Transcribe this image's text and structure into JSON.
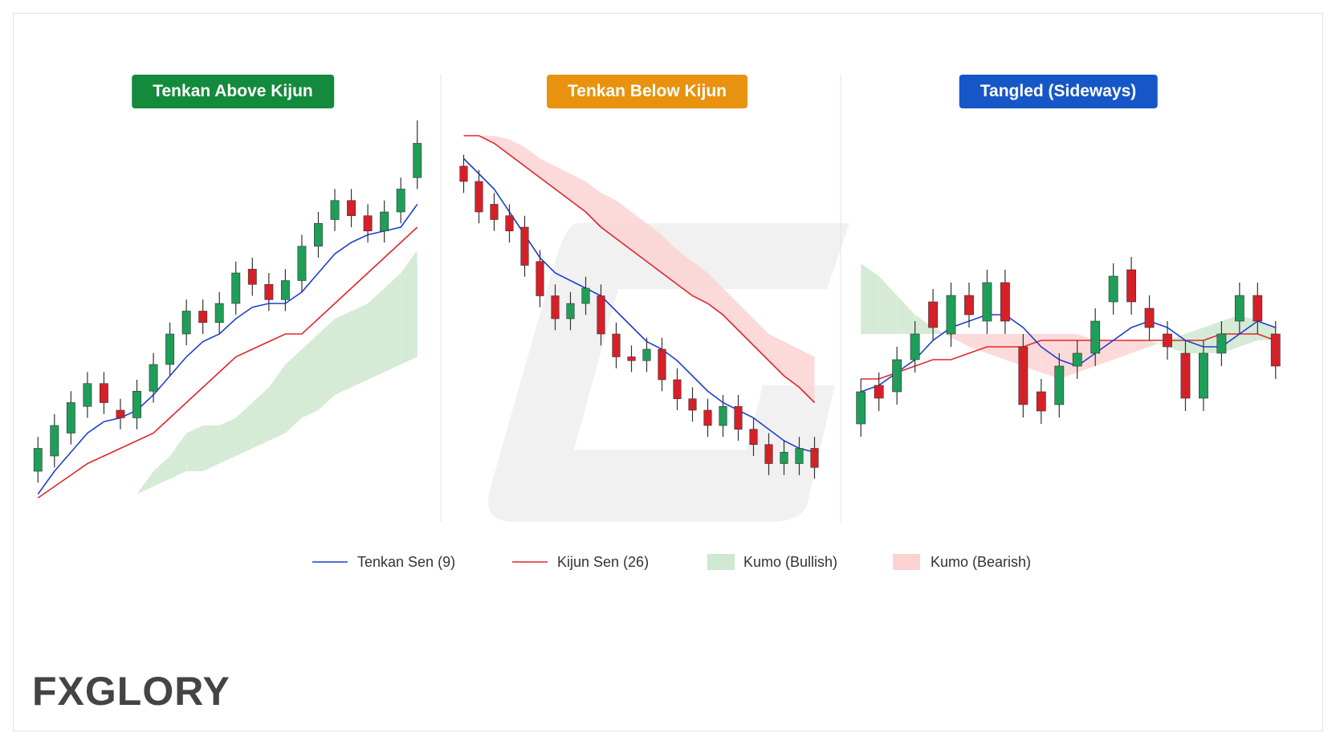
{
  "logo": "FXGLORY",
  "legend": [
    {
      "name": "Tenkan Sen (9)",
      "color": "#1f3fcf"
    },
    {
      "name": "Kijun Sen (26)",
      "color": "#e0262b"
    },
    {
      "name": "Kumo (Bullish)",
      "color": "#cfe8cf"
    },
    {
      "name": "Kumo (Bearish)",
      "color": "#fbd3d3"
    }
  ],
  "candle_colors": {
    "up": "#1e9e58",
    "down": "#d62027"
  },
  "chart_data": [
    {
      "type": "candlestick",
      "title": "Tenkan Above Kijun",
      "badge_color": "#148a3c",
      "ylim": [
        0,
        100
      ],
      "open": [
        8,
        12,
        18,
        25,
        31,
        24,
        22,
        29,
        36,
        44,
        50,
        47,
        52,
        61,
        57,
        53,
        58,
        67,
        74,
        79,
        75,
        71,
        76,
        85
      ],
      "high": [
        17,
        23,
        29,
        34,
        34,
        27,
        32,
        39,
        47,
        53,
        53,
        55,
        63,
        64,
        60,
        61,
        70,
        76,
        82,
        82,
        78,
        79,
        85,
        100
      ],
      "low": [
        5,
        9,
        15,
        22,
        23,
        19,
        19,
        26,
        33,
        41,
        44,
        44,
        49,
        54,
        50,
        50,
        55,
        64,
        71,
        72,
        68,
        68,
        73,
        82
      ],
      "close": [
        14,
        20,
        26,
        31,
        26,
        22,
        29,
        36,
        44,
        50,
        47,
        52,
        60,
        57,
        53,
        58,
        67,
        73,
        79,
        75,
        71,
        76,
        82,
        94
      ],
      "tenkan": [
        2,
        8,
        13,
        18,
        21,
        22,
        24,
        28,
        33,
        38,
        42,
        44,
        48,
        51,
        52,
        52,
        55,
        60,
        65,
        68,
        70,
        71,
        72,
        78
      ],
      "kijun": [
        1,
        4,
        7,
        10,
        12,
        14,
        16,
        18,
        22,
        26,
        30,
        34,
        38,
        40,
        42,
        44,
        44,
        48,
        52,
        56,
        60,
        64,
        68,
        72
      ],
      "kumo_a": [
        null,
        null,
        null,
        null,
        null,
        null,
        2,
        8,
        12,
        18,
        20,
        20,
        22,
        26,
        30,
        36,
        40,
        44,
        48,
        50,
        52,
        56,
        60,
        66
      ],
      "kumo_b": [
        null,
        null,
        null,
        null,
        null,
        null,
        2,
        4,
        6,
        8,
        8,
        10,
        12,
        14,
        16,
        18,
        22,
        24,
        28,
        30,
        32,
        34,
        36,
        38
      ]
    },
    {
      "type": "candlestick",
      "title": "Tenkan Below Kijun",
      "badge_color": "#e8920f",
      "ylim": [
        0,
        100
      ],
      "open": [
        88,
        84,
        78,
        75,
        72,
        63,
        54,
        48,
        52,
        54,
        44,
        38,
        37,
        40,
        32,
        27,
        24,
        20,
        25,
        19,
        15,
        10,
        10,
        14
      ],
      "high": [
        91,
        87,
        81,
        78,
        75,
        66,
        57,
        55,
        59,
        57,
        47,
        41,
        43,
        43,
        35,
        30,
        27,
        28,
        28,
        22,
        18,
        16,
        17,
        17
      ],
      "low": [
        81,
        73,
        71,
        68,
        59,
        51,
        45,
        45,
        49,
        41,
        35,
        34,
        34,
        29,
        24,
        21,
        17,
        17,
        16,
        12,
        7,
        7,
        7,
        6
      ],
      "close": [
        84,
        76,
        74,
        71,
        62,
        54,
        48,
        52,
        56,
        44,
        38,
        37,
        40,
        32,
        27,
        24,
        20,
        25,
        19,
        15,
        10,
        13,
        14,
        9
      ],
      "tenkan": [
        90,
        86,
        82,
        76,
        70,
        64,
        60,
        58,
        56,
        54,
        50,
        46,
        42,
        40,
        37,
        33,
        29,
        26,
        24,
        22,
        19,
        16,
        14,
        13
      ],
      "kijun": [
        96,
        96,
        94,
        91,
        88,
        85,
        82,
        79,
        76,
        72,
        69,
        66,
        63,
        60,
        57,
        54,
        52,
        49,
        45,
        41,
        37,
        33,
        30,
        26
      ],
      "kumo_a": [
        96,
        96,
        94,
        91,
        88,
        85,
        82,
        79,
        76,
        72,
        69,
        66,
        63,
        60,
        57,
        54,
        52,
        49,
        45,
        41,
        37,
        33,
        30,
        26
      ],
      "kumo_b": [
        96,
        96,
        96,
        95,
        93,
        90,
        88,
        86,
        84,
        81,
        79,
        76,
        73,
        70,
        66,
        63,
        60,
        56,
        52,
        48,
        44,
        42,
        40,
        38
      ]
    },
    {
      "type": "candlestick",
      "title": "Tangled (Sideways)",
      "badge_color": "#1657c8",
      "ylim": [
        20,
        85
      ],
      "open": [
        28,
        40,
        38,
        48,
        66,
        56,
        68,
        60,
        72,
        52,
        38,
        34,
        46,
        50,
        66,
        76,
        64,
        56,
        50,
        36,
        50,
        60,
        68,
        56
      ],
      "high": [
        42,
        44,
        52,
        60,
        70,
        72,
        72,
        76,
        76,
        56,
        42,
        50,
        54,
        64,
        78,
        80,
        68,
        60,
        54,
        54,
        60,
        72,
        72,
        60
      ],
      "low": [
        24,
        32,
        34,
        44,
        54,
        52,
        58,
        56,
        56,
        30,
        28,
        30,
        42,
        46,
        62,
        62,
        54,
        48,
        32,
        32,
        46,
        56,
        56,
        42
      ],
      "close": [
        38,
        36,
        48,
        56,
        58,
        68,
        62,
        72,
        60,
        34,
        32,
        46,
        50,
        60,
        74,
        66,
        58,
        52,
        36,
        50,
        56,
        68,
        60,
        46
      ],
      "tenkan": [
        38,
        40,
        44,
        48,
        54,
        58,
        60,
        62,
        62,
        58,
        52,
        48,
        46,
        50,
        54,
        58,
        60,
        58,
        54,
        52,
        52,
        56,
        60,
        58
      ],
      "kijun": [
        42,
        42,
        44,
        46,
        48,
        48,
        50,
        52,
        52,
        52,
        54,
        54,
        54,
        54,
        54,
        54,
        54,
        54,
        54,
        54,
        56,
        56,
        56,
        54
      ],
      "kumo_a": [
        78,
        74,
        68,
        62,
        58,
        55,
        52,
        50,
        48,
        46,
        44,
        42,
        44,
        46,
        48,
        50,
        52,
        54,
        56,
        58,
        60,
        62,
        60,
        58
      ],
      "kumo_b": [
        56,
        56,
        56,
        56,
        56,
        56,
        56,
        56,
        56,
        56,
        56,
        56,
        56,
        54,
        54,
        54,
        54,
        52,
        50,
        50,
        50,
        52,
        54,
        54
      ]
    }
  ]
}
